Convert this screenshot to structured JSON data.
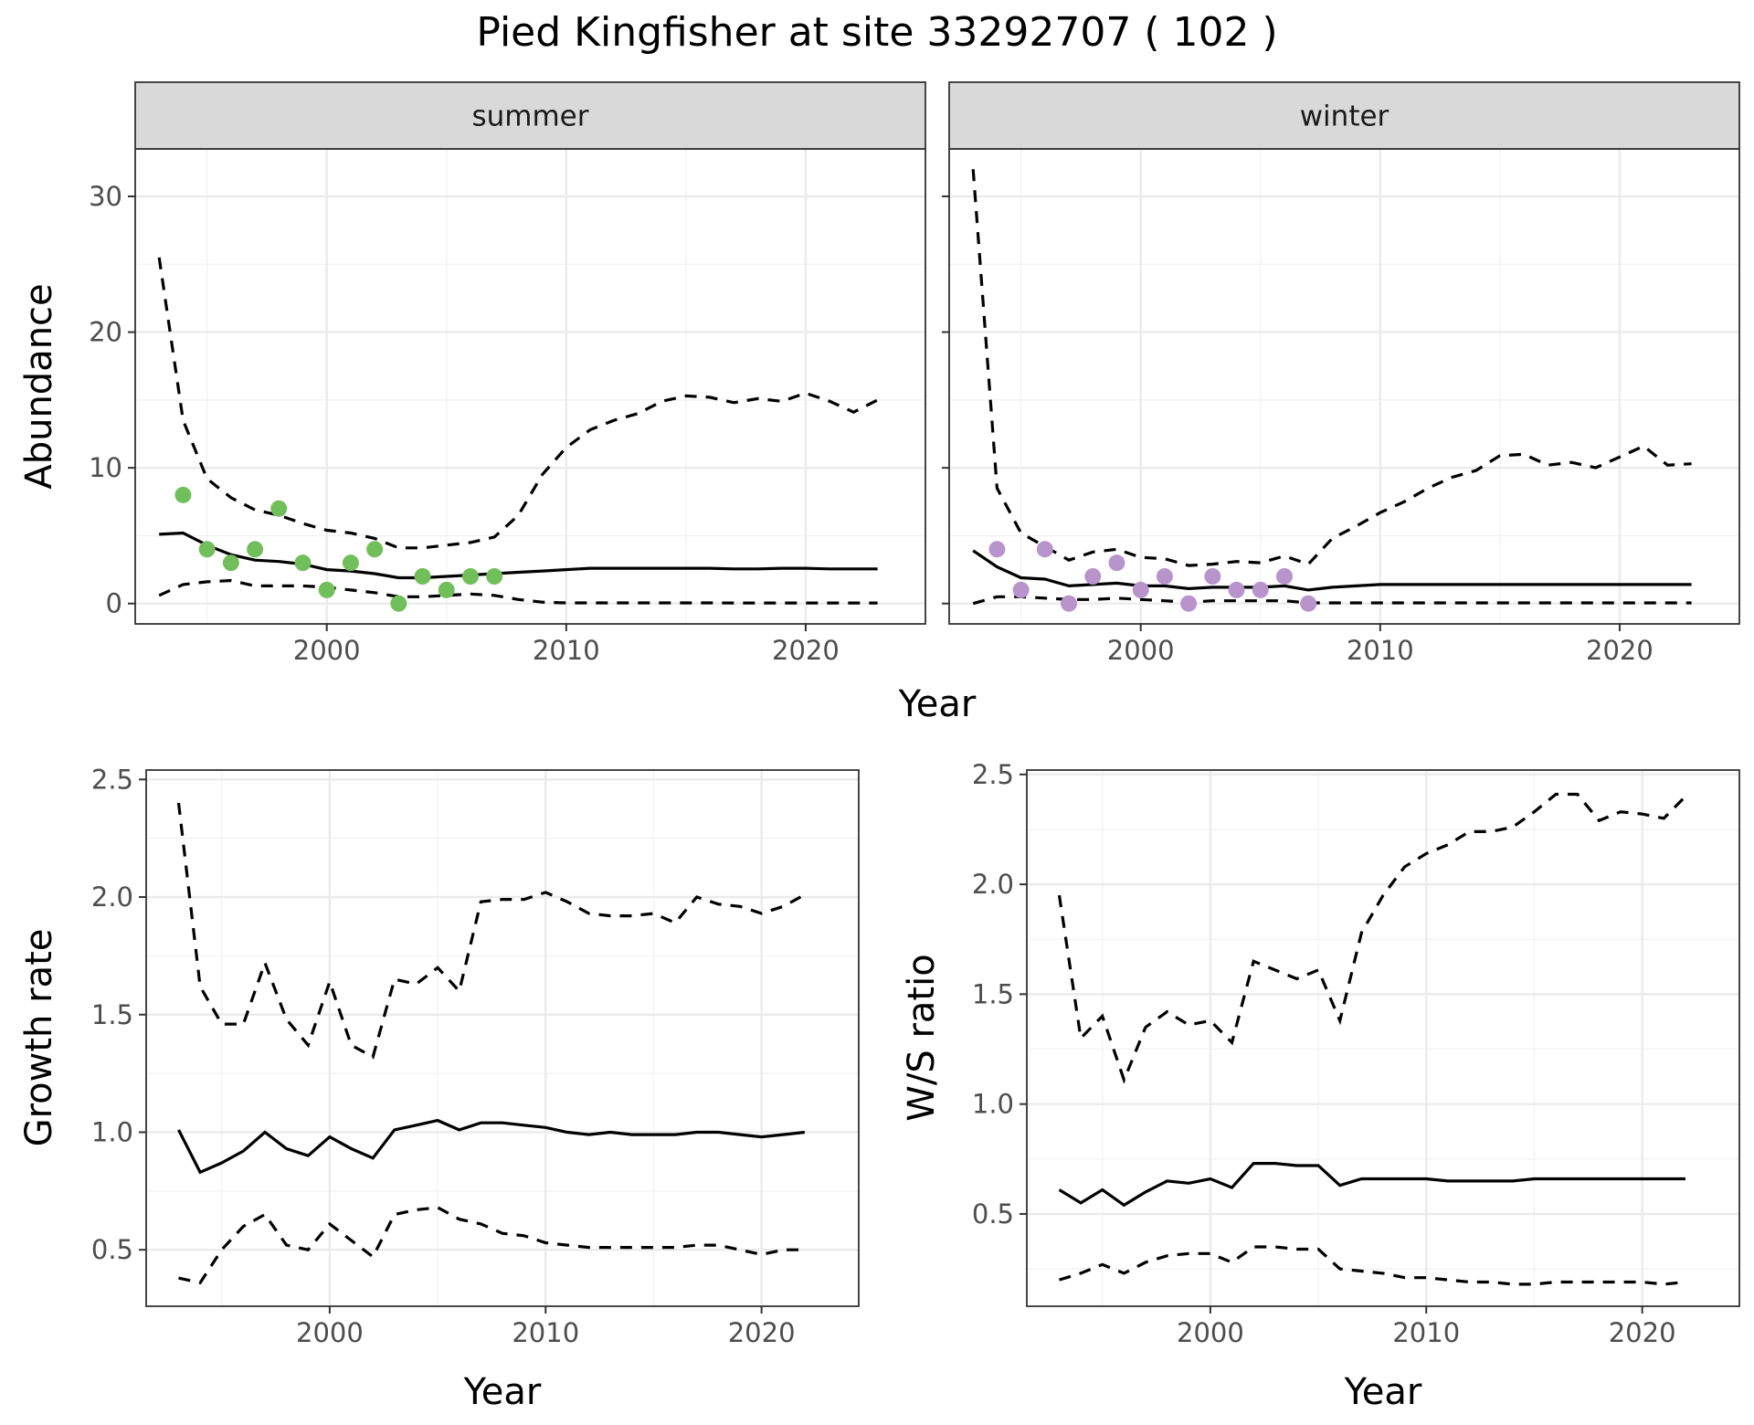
{
  "title": "Pied Kingfisher at site 33292707 ( 102 )",
  "colors": {
    "summer_points": "#71bf5a",
    "winter_points": "#b993cc"
  },
  "chart_data": [
    {
      "id": "summer",
      "type": "line",
      "strip": "summer",
      "ylabel": "Abundance",
      "xlabel": "Year",
      "xlim": [
        1992,
        2025
      ],
      "ylim": [
        -1.5,
        33.5
      ],
      "xticks": [
        2000,
        2010,
        2020
      ],
      "yticks": [
        0,
        10,
        20,
        30
      ],
      "x": [
        1993,
        1994,
        1995,
        1996,
        1997,
        1998,
        1999,
        2000,
        2001,
        2002,
        2003,
        2004,
        2005,
        2006,
        2007,
        2008,
        2009,
        2010,
        2011,
        2012,
        2013,
        2014,
        2015,
        2016,
        2017,
        2018,
        2019,
        2020,
        2021,
        2022,
        2023
      ],
      "series": [
        {
          "style": "solid",
          "values": [
            5.1,
            5.2,
            4.3,
            3.6,
            3.2,
            3.1,
            2.9,
            2.5,
            2.4,
            2.2,
            1.9,
            1.9,
            2.0,
            2.1,
            2.2,
            2.3,
            2.4,
            2.5,
            2.6,
            2.6,
            2.6,
            2.6,
            2.6,
            2.6,
            2.55,
            2.55,
            2.6,
            2.6,
            2.55,
            2.55,
            2.55
          ]
        },
        {
          "style": "dashed",
          "values": [
            25.5,
            13.5,
            9.2,
            7.8,
            6.9,
            6.5,
            5.9,
            5.4,
            5.2,
            4.8,
            4.1,
            4.1,
            4.3,
            4.5,
            4.9,
            6.5,
            9.5,
            11.5,
            12.8,
            13.5,
            14.0,
            14.9,
            15.3,
            15.2,
            14.8,
            15.1,
            14.9,
            15.5,
            14.9,
            14.1,
            15.0
          ]
        },
        {
          "style": "dashed",
          "values": [
            0.6,
            1.4,
            1.6,
            1.7,
            1.3,
            1.3,
            1.3,
            1.2,
            1.0,
            0.8,
            0.5,
            0.5,
            0.6,
            0.7,
            0.6,
            0.3,
            0.1,
            0.05,
            0.05,
            0.05,
            0.05,
            0.05,
            0.05,
            0.05,
            0.04,
            0.04,
            0.04,
            0.04,
            0.04,
            0.04,
            0.04
          ]
        }
      ],
      "points": {
        "x": [
          1994,
          1995,
          1996,
          1997,
          1998,
          1999,
          2000,
          2001,
          2002,
          2003,
          2004,
          2005,
          2006,
          2007
        ],
        "y": [
          8,
          4,
          3,
          4,
          7,
          3,
          1,
          3,
          4,
          0,
          2,
          1,
          2,
          2
        ]
      }
    },
    {
      "id": "winter",
      "type": "line",
      "strip": "winter",
      "ylabel": "",
      "xlabel": "Year",
      "xlim": [
        1992,
        2025
      ],
      "ylim": [
        -1.5,
        33.5
      ],
      "xticks": [
        2000,
        2010,
        2020
      ],
      "yticks": [
        0,
        10,
        20,
        30
      ],
      "x": [
        1993,
        1994,
        1995,
        1996,
        1997,
        1998,
        1999,
        2000,
        2001,
        2002,
        2003,
        2004,
        2005,
        2006,
        2007,
        2008,
        2009,
        2010,
        2011,
        2012,
        2013,
        2014,
        2015,
        2016,
        2017,
        2018,
        2019,
        2020,
        2021,
        2022,
        2023
      ],
      "series": [
        {
          "style": "solid",
          "values": [
            3.9,
            2.7,
            1.9,
            1.8,
            1.3,
            1.4,
            1.5,
            1.3,
            1.3,
            1.1,
            1.2,
            1.2,
            1.2,
            1.3,
            1.0,
            1.2,
            1.3,
            1.4,
            1.4,
            1.4,
            1.4,
            1.4,
            1.4,
            1.4,
            1.4,
            1.4,
            1.4,
            1.4,
            1.4,
            1.4,
            1.4
          ]
        },
        {
          "style": "dashed",
          "values": [
            32.0,
            8.5,
            5.2,
            4.2,
            3.2,
            3.8,
            4.0,
            3.4,
            3.3,
            2.8,
            2.9,
            3.1,
            3.0,
            3.5,
            2.9,
            4.8,
            5.7,
            6.7,
            7.5,
            8.5,
            9.3,
            9.8,
            10.9,
            11.0,
            10.2,
            10.4,
            10.0,
            10.8,
            11.6,
            10.2,
            10.3
          ]
        },
        {
          "style": "dashed",
          "values": [
            0.0,
            0.5,
            0.5,
            0.4,
            0.3,
            0.3,
            0.4,
            0.3,
            0.2,
            0.1,
            0.2,
            0.2,
            0.2,
            0.2,
            0.05,
            0.05,
            0.05,
            0.05,
            0.05,
            0.05,
            0.05,
            0.05,
            0.05,
            0.05,
            0.05,
            0.05,
            0.05,
            0.05,
            0.05,
            0.05,
            0.05
          ]
        }
      ],
      "points": {
        "x": [
          1994,
          1995,
          1996,
          1997,
          1998,
          1999,
          2000,
          2001,
          2002,
          2003,
          2004,
          2005,
          2006,
          2007
        ],
        "y": [
          4,
          1,
          4,
          0,
          2,
          3,
          1,
          2,
          0,
          2,
          1,
          1,
          2,
          0
        ]
      }
    },
    {
      "id": "growth",
      "type": "line",
      "ylabel": "Growth rate",
      "xlabel": "Year",
      "xlim": [
        1991.5,
        2024.5
      ],
      "ylim": [
        0.26,
        2.54
      ],
      "xticks": [
        2000,
        2010,
        2020
      ],
      "yticks": [
        0.5,
        1.0,
        1.5,
        2.0,
        2.5
      ],
      "x": [
        1993,
        1994,
        1995,
        1996,
        1997,
        1998,
        1999,
        2000,
        2001,
        2002,
        2003,
        2004,
        2005,
        2006,
        2007,
        2008,
        2009,
        2010,
        2011,
        2012,
        2013,
        2014,
        2015,
        2016,
        2017,
        2018,
        2019,
        2020,
        2021,
        2022
      ],
      "series": [
        {
          "style": "solid",
          "values": [
            1.01,
            0.83,
            0.87,
            0.92,
            1.0,
            0.93,
            0.9,
            0.98,
            0.93,
            0.89,
            1.01,
            1.03,
            1.05,
            1.01,
            1.04,
            1.04,
            1.03,
            1.02,
            1.0,
            0.99,
            1.0,
            0.99,
            0.99,
            0.99,
            1.0,
            1.0,
            0.99,
            0.98,
            0.99,
            1.0
          ]
        },
        {
          "style": "dashed",
          "values": [
            2.4,
            1.62,
            1.46,
            1.46,
            1.72,
            1.48,
            1.37,
            1.64,
            1.37,
            1.32,
            1.65,
            1.63,
            1.7,
            1.6,
            1.98,
            1.99,
            1.99,
            2.02,
            1.98,
            1.93,
            1.92,
            1.92,
            1.93,
            1.89,
            2.0,
            1.97,
            1.96,
            1.93,
            1.96,
            2.01
          ]
        },
        {
          "style": "dashed",
          "values": [
            0.38,
            0.36,
            0.5,
            0.6,
            0.65,
            0.52,
            0.5,
            0.61,
            0.54,
            0.47,
            0.65,
            0.67,
            0.68,
            0.63,
            0.61,
            0.57,
            0.56,
            0.53,
            0.52,
            0.51,
            0.51,
            0.51,
            0.51,
            0.51,
            0.52,
            0.52,
            0.5,
            0.48,
            0.5,
            0.5
          ]
        }
      ]
    },
    {
      "id": "ratio",
      "type": "line",
      "ylabel": "W/S ratio",
      "xlabel": "Year",
      "xlim": [
        1991.5,
        2024.5
      ],
      "ylim": [
        0.08,
        2.52
      ],
      "xticks": [
        2000,
        2010,
        2020
      ],
      "yticks": [
        0.5,
        1.0,
        1.5,
        2.0,
        2.5
      ],
      "x": [
        1993,
        1994,
        1995,
        1996,
        1997,
        1998,
        1999,
        2000,
        2001,
        2002,
        2003,
        2004,
        2005,
        2006,
        2007,
        2008,
        2009,
        2010,
        2011,
        2012,
        2013,
        2014,
        2015,
        2016,
        2017,
        2018,
        2019,
        2020,
        2021,
        2022
      ],
      "series": [
        {
          "style": "solid",
          "values": [
            0.61,
            0.55,
            0.61,
            0.54,
            0.6,
            0.65,
            0.64,
            0.66,
            0.62,
            0.73,
            0.73,
            0.72,
            0.72,
            0.63,
            0.66,
            0.66,
            0.66,
            0.66,
            0.65,
            0.65,
            0.65,
            0.65,
            0.66,
            0.66,
            0.66,
            0.66,
            0.66,
            0.66,
            0.66,
            0.66
          ]
        },
        {
          "style": "dashed",
          "values": [
            1.95,
            1.3,
            1.4,
            1.11,
            1.35,
            1.42,
            1.36,
            1.38,
            1.28,
            1.65,
            1.61,
            1.57,
            1.61,
            1.38,
            1.78,
            1.95,
            2.08,
            2.14,
            2.18,
            2.24,
            2.24,
            2.26,
            2.33,
            2.41,
            2.41,
            2.29,
            2.33,
            2.32,
            2.3,
            2.4
          ]
        },
        {
          "style": "dashed",
          "values": [
            0.2,
            0.23,
            0.27,
            0.23,
            0.28,
            0.31,
            0.32,
            0.32,
            0.28,
            0.35,
            0.35,
            0.34,
            0.34,
            0.25,
            0.24,
            0.23,
            0.21,
            0.21,
            0.2,
            0.19,
            0.19,
            0.18,
            0.18,
            0.19,
            0.19,
            0.19,
            0.19,
            0.19,
            0.18,
            0.19
          ]
        }
      ]
    }
  ]
}
